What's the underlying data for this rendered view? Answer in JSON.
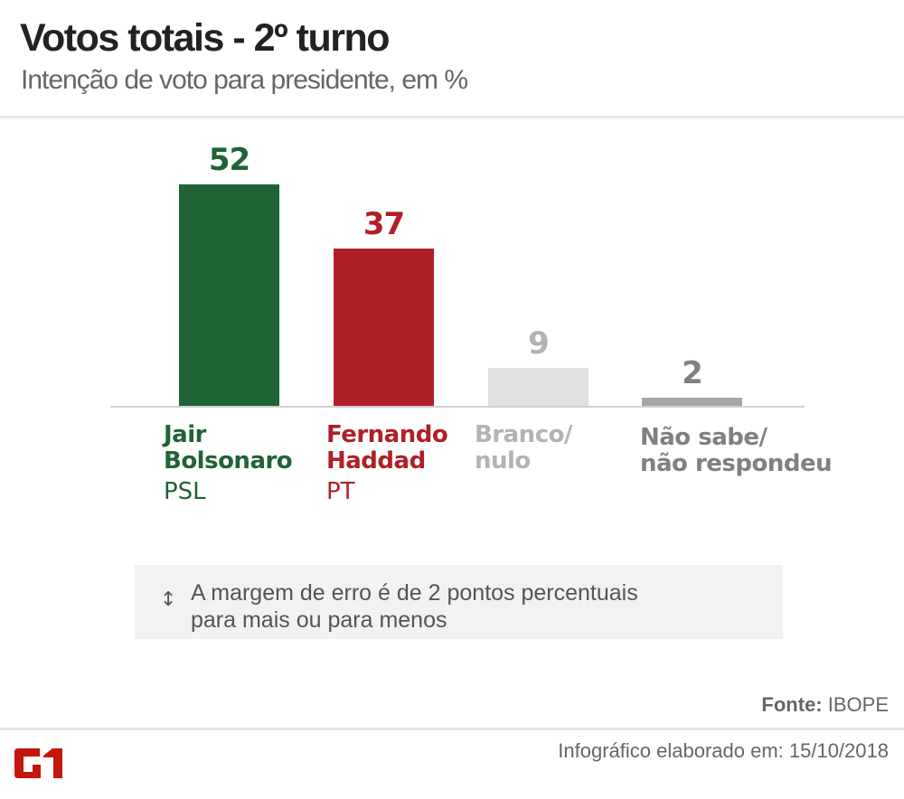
{
  "header": {
    "title": "Votos totais - 2º turno",
    "subtitle": "Intenção de voto para presidente, em %"
  },
  "chart_data": {
    "type": "bar",
    "title": "Votos totais - 2º turno",
    "subtitle": "Intenção de voto para presidente, em %",
    "categories": [
      "Jair Bolsonaro (PSL)",
      "Fernando Haddad (PT)",
      "Branco/nulo",
      "Não sabe/não respondeu"
    ],
    "values": [
      52,
      37,
      9,
      2
    ],
    "colors": [
      "#1f6336",
      "#b01f26",
      "#e0e0e0",
      "#a6a6a6"
    ],
    "xlabel": "",
    "ylabel": "%",
    "ylim": [
      0,
      52
    ],
    "grid": false,
    "legend": "none"
  },
  "bars": [
    {
      "value": "52",
      "name_line1": "Jair",
      "name_line2": "Bolsonaro",
      "party": "PSL",
      "color": "#1f6336",
      "label_color": "#1f6336"
    },
    {
      "value": "37",
      "name_line1": "Fernando",
      "name_line2": "Haddad",
      "party": "PT",
      "color": "#b01f26",
      "label_color": "#b01f26"
    },
    {
      "value": "9",
      "name_line1": "Branco/",
      "name_line2": "nulo",
      "party": "",
      "color": "#e0e0e0",
      "label_color": "#b3b3b3"
    },
    {
      "value": "2",
      "name_line1": "Não sabe/",
      "name_line2": "não respondeu",
      "party": "",
      "color": "#a6a6a6",
      "label_color": "#808080"
    }
  ],
  "note": {
    "icon": "updown-arrow-icon",
    "line1": "A margem de erro é de 2 pontos percentuais",
    "line2": "para mais ou para menos"
  },
  "footer": {
    "source_label": "Fonte:",
    "source_value": "IBOPE",
    "date_text": "Infográfico elaborado em: 15/10/2018",
    "logo": "G1",
    "logo_color": "#c4170c"
  }
}
